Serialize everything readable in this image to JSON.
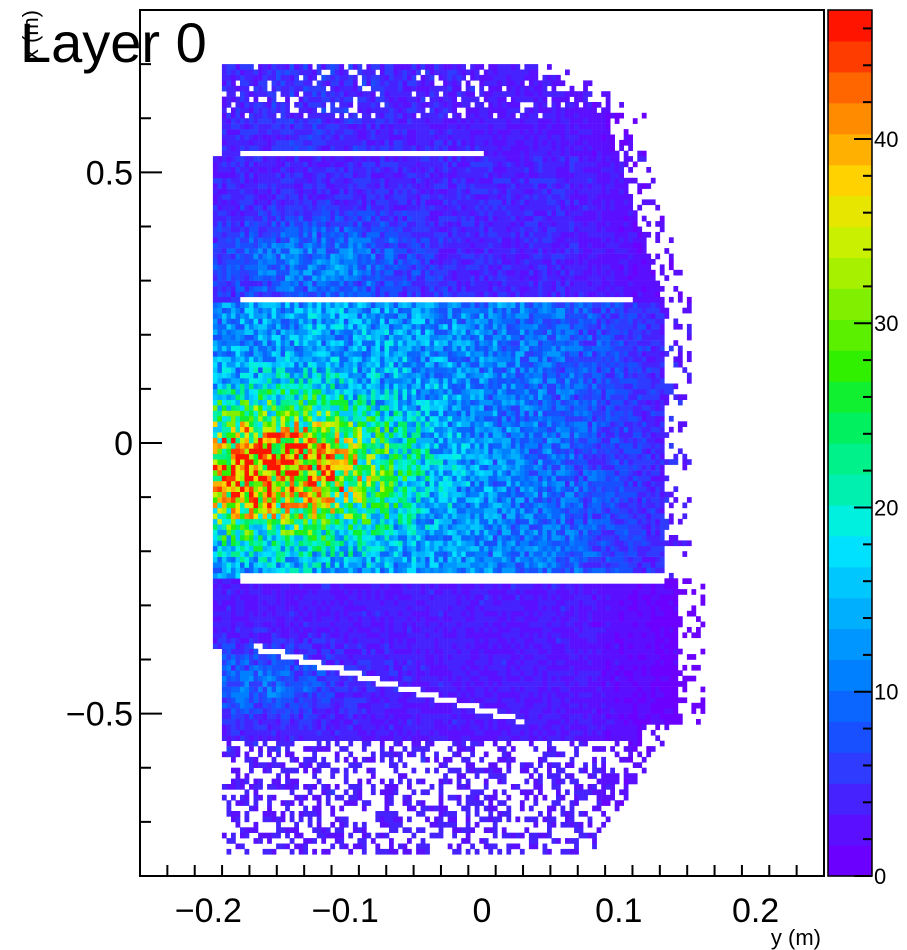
{
  "chart_data": {
    "type": "heatmap",
    "title": "Layer 0",
    "xlabel": "y (m)",
    "ylabel": "x (m)",
    "xlim": [
      -0.25,
      0.25
    ],
    "ylim": [
      -0.8,
      0.8
    ],
    "x_ticks": [
      -0.2,
      -0.1,
      0,
      0.1,
      0.2
    ],
    "x_tick_labels": [
      "−0.2",
      "−0.1",
      "0",
      "0.1",
      "0.2"
    ],
    "y_ticks": [
      -0.5,
      0,
      0.5
    ],
    "y_tick_labels": [
      "−0.5",
      "0",
      "0.5"
    ],
    "colorbar": {
      "min": 0,
      "max": 47,
      "ticks": [
        0,
        10,
        20,
        30,
        40
      ],
      "tick_labels": [
        "0",
        "10",
        "20",
        "30",
        "40"
      ],
      "palette": [
        "#6c00ff",
        "#5a10ff",
        "#4622ff",
        "#2f3cff",
        "#1850ff",
        "#0a66ff",
        "#007fff",
        "#0096ff",
        "#00b0ff",
        "#00c8ff",
        "#00e0ff",
        "#00f0e0",
        "#00f0b0",
        "#00f08a",
        "#00f060",
        "#10f030",
        "#30f000",
        "#5af000",
        "#80f000",
        "#a6f000",
        "#c8f000",
        "#e6e600",
        "#ffd200",
        "#ffb000",
        "#ff8c00",
        "#ff6600",
        "#ff3c00",
        "#ff1400"
      ]
    },
    "density_peak": {
      "x": -0.055,
      "y": -0.16
    },
    "gaps_x": [
      0.53,
      0.26,
      -0.255
    ]
  }
}
